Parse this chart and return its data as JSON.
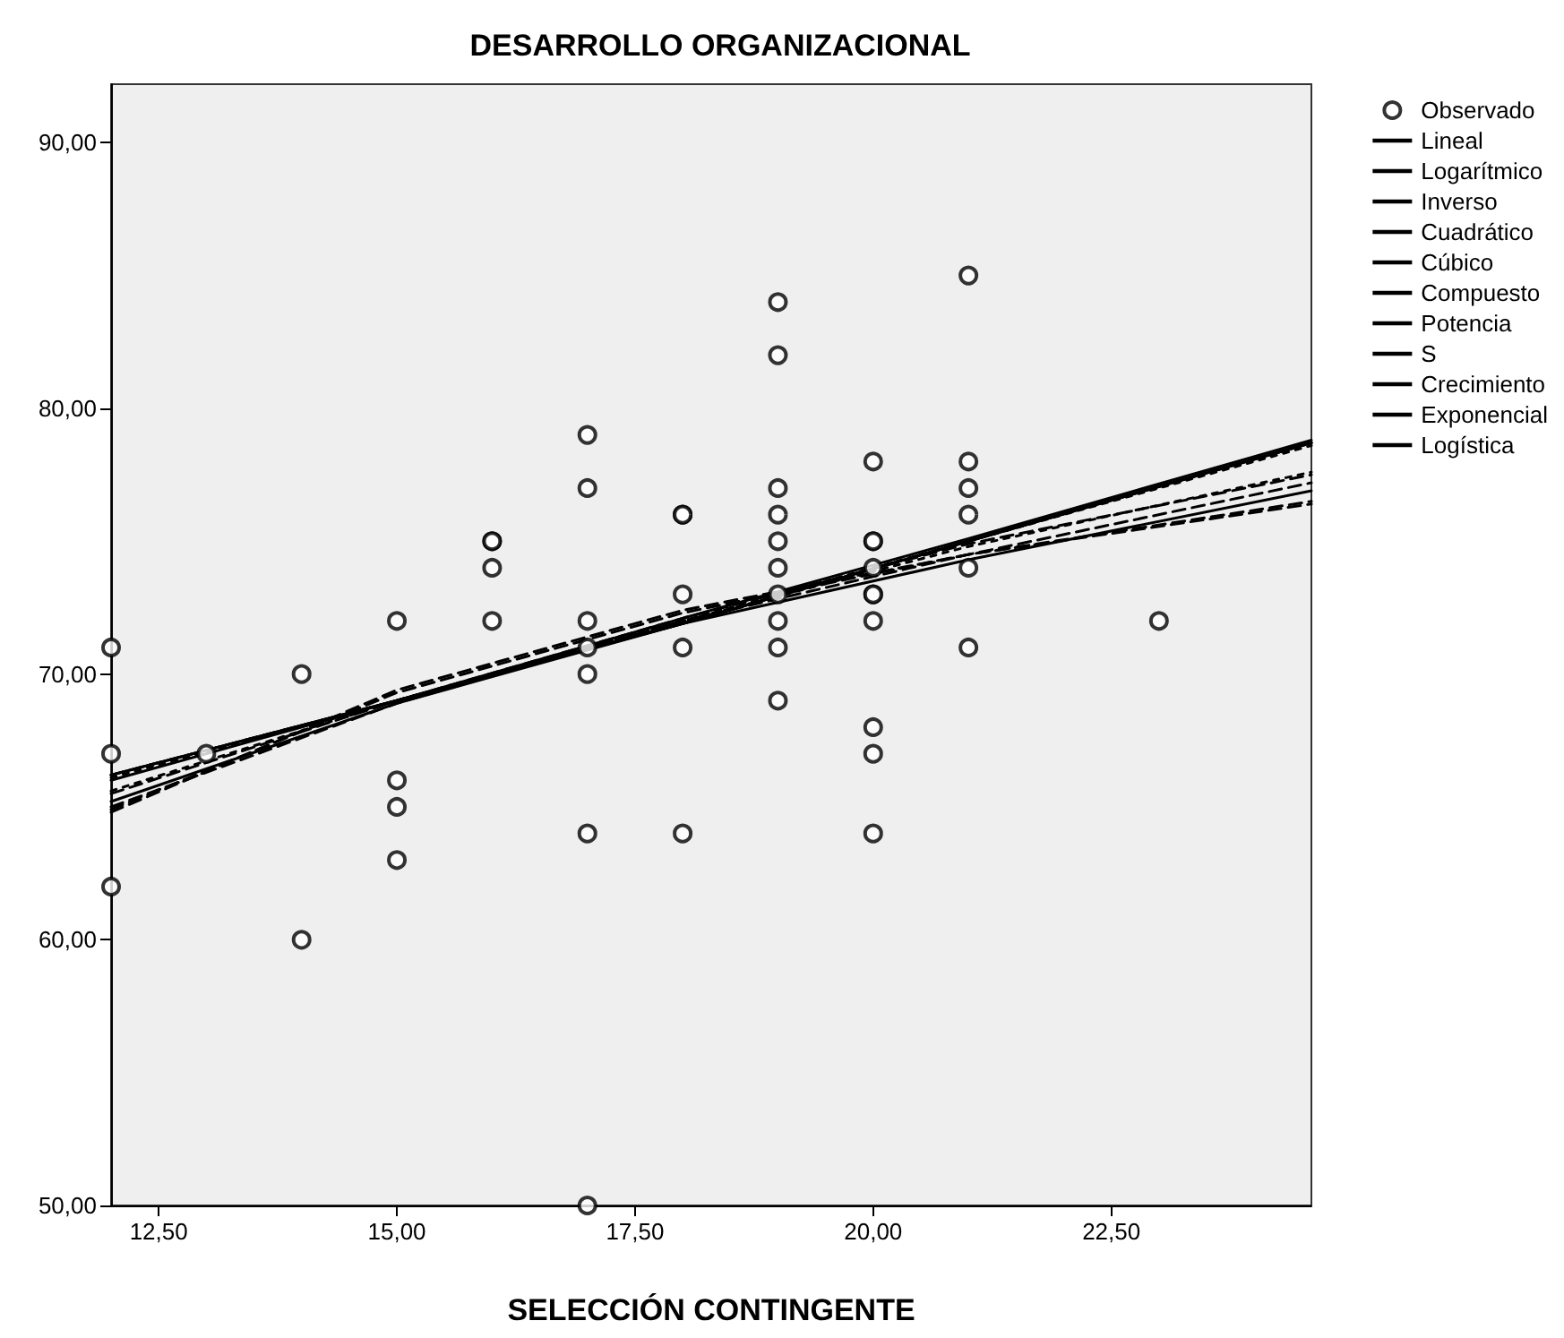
{
  "chart_data": {
    "type": "scatter",
    "title": "DESARROLLO ORGANIZACIONAL",
    "xlabel": "SELECCIÓN CONTINGENTE",
    "xlim": [
      12,
      24.6
    ],
    "ylim": [
      50,
      92.2
    ],
    "xticks": [
      {
        "value": 12.5,
        "label": "12,50"
      },
      {
        "value": 15,
        "label": "15,00"
      },
      {
        "value": 17.5,
        "label": "17,50"
      },
      {
        "value": 20,
        "label": "20,00"
      },
      {
        "value": 22.5,
        "label": "22,50"
      }
    ],
    "yticks": [
      {
        "value": 50,
        "label": "50,00"
      },
      {
        "value": 60,
        "label": "60,00"
      },
      {
        "value": 70,
        "label": "70,00"
      },
      {
        "value": 80,
        "label": "80,00"
      },
      {
        "value": 90,
        "label": "90,00"
      }
    ],
    "grid": false,
    "legend": "top right",
    "series": [
      {
        "name": "Observado",
        "marker": "circle",
        "color": "#000000",
        "x": [
          12,
          12,
          12,
          13,
          14,
          14,
          15,
          15,
          15,
          15,
          16,
          16,
          16,
          16,
          17,
          17,
          17,
          17,
          17,
          17,
          17,
          18,
          18,
          18,
          18,
          18,
          19,
          19,
          19,
          19,
          19,
          19,
          19,
          19,
          19,
          19,
          20,
          20,
          20,
          20,
          20,
          20,
          20,
          20,
          20,
          20,
          21,
          21,
          21,
          21,
          21,
          21,
          23
        ],
        "values": [
          71,
          67,
          62,
          67,
          70,
          60,
          72,
          66,
          65,
          63,
          75,
          75,
          74,
          72,
          79,
          77,
          72,
          71,
          70,
          64,
          50,
          76,
          76,
          73,
          71,
          64,
          84,
          82,
          77,
          76,
          75,
          74,
          73,
          72,
          71,
          69,
          78,
          75,
          75,
          74,
          73,
          73,
          72,
          68,
          67,
          64,
          85,
          78,
          77,
          76,
          74,
          71,
          72
        ]
      },
      {
        "name": "Lineal",
        "type": "line",
        "line_style": "solid",
        "color": "#000000",
        "x": [
          12,
          15,
          18,
          21,
          24.6
        ],
        "values": [
          66.0,
          69.0,
          72.1,
          75.1,
          78.8
        ]
      },
      {
        "name": "Logarítmico",
        "type": "line",
        "line_style": "solid",
        "color": "#000000",
        "x": [
          12,
          15,
          18,
          21,
          24.6
        ],
        "values": [
          65.2,
          68.9,
          71.9,
          74.3,
          76.9
        ]
      },
      {
        "name": "Inverso",
        "type": "line",
        "line_style": "dashed",
        "color": "#000000",
        "x": [
          12,
          15,
          18,
          21,
          24.6
        ],
        "values": [
          64.8,
          69.4,
          72.4,
          74.5,
          76.4
        ]
      },
      {
        "name": "Cuadrático",
        "type": "line",
        "line_style": "dashed",
        "color": "#000000",
        "x": [
          12,
          15,
          18,
          21,
          24.6
        ],
        "values": [
          65.5,
          69.0,
          72.1,
          74.9,
          77.5
        ]
      },
      {
        "name": "Cúbico",
        "type": "line",
        "line_style": "dotted",
        "color": "#000000",
        "x": [
          12,
          15,
          18,
          21,
          24.6
        ],
        "values": [
          65.6,
          69.0,
          72.0,
          74.8,
          77.6
        ]
      },
      {
        "name": "Compuesto",
        "type": "line",
        "line_style": "solid",
        "color": "#000000",
        "x": [
          12,
          15,
          18,
          21,
          24.6
        ],
        "values": [
          66.2,
          69.0,
          71.9,
          75.0,
          78.7
        ]
      },
      {
        "name": "Potencia",
        "type": "line",
        "line_style": "dashed",
        "color": "#000000",
        "x": [
          12,
          15,
          18,
          21,
          24.6
        ],
        "values": [
          65.0,
          68.9,
          72.0,
          74.5,
          77.2
        ]
      },
      {
        "name": "S",
        "type": "line",
        "line_style": "dashed",
        "color": "#000000",
        "x": [
          12,
          15,
          18,
          21,
          24.6
        ],
        "values": [
          64.9,
          69.3,
          72.3,
          74.5,
          76.5
        ]
      },
      {
        "name": "Crecimiento",
        "type": "line",
        "line_style": "dashed",
        "color": "#000000",
        "x": [
          12,
          15,
          18,
          21,
          24.6
        ],
        "values": [
          66.2,
          69.0,
          71.9,
          75.0,
          78.7
        ]
      },
      {
        "name": "Exponencial",
        "type": "line",
        "line_style": "solid",
        "color": "#000000",
        "x": [
          12,
          15,
          18,
          21,
          24.6
        ],
        "values": [
          66.2,
          69.0,
          71.9,
          75.0,
          78.7
        ]
      },
      {
        "name": "Logística",
        "type": "line",
        "line_style": "dotted",
        "color": "#000000",
        "x": [
          12,
          15,
          18,
          21,
          24.6
        ],
        "values": [
          66.1,
          69.0,
          72.0,
          75.0,
          78.6
        ]
      }
    ]
  }
}
